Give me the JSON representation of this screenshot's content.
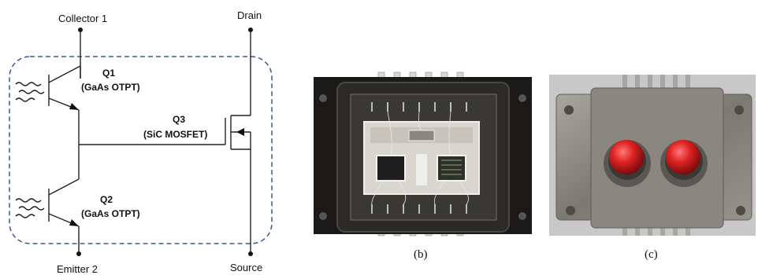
{
  "circuit": {
    "terminals": {
      "collector1": "Collector 1",
      "drain": "Drain",
      "emitter2": "Emitter 2",
      "source": "Source"
    },
    "q1": {
      "name": "Q1",
      "type": "(GaAs OTPT)"
    },
    "q2": {
      "name": "Q2",
      "type": "(GaAs OTPT)"
    },
    "q3": {
      "name": "Q3",
      "type": "(SiC MOSFET)"
    }
  },
  "photos": {
    "b": {
      "caption": "(b)"
    },
    "c": {
      "caption": "(c)"
    }
  },
  "colors": {
    "boundary": "#3a5a8c",
    "photo_b_frame": "#1c1a18",
    "photo_c_body": "#8a8780",
    "red_lens": "#d41f1f"
  }
}
